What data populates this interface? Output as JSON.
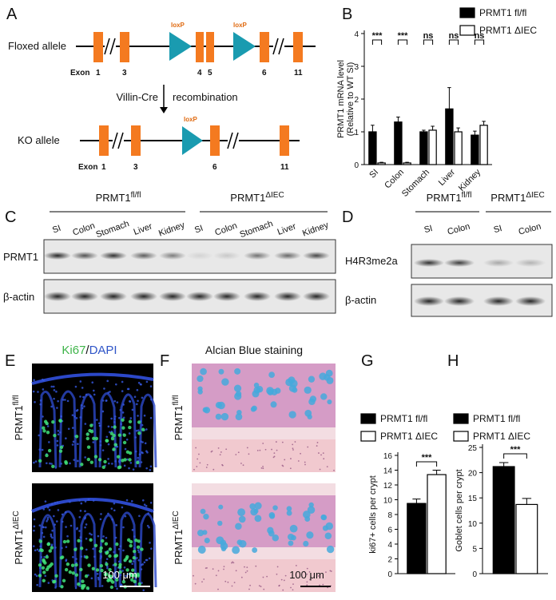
{
  "panel_a": {
    "label": "A",
    "floxed": {
      "title": "Floxed allele",
      "exon_word": "Exon",
      "exons": [
        "1",
        "3",
        "4",
        "5",
        "6",
        "11"
      ],
      "loxp": [
        "loxP",
        "loxP"
      ]
    },
    "arrow": {
      "left": "Villin-Cre",
      "right": "recombination"
    },
    "ko": {
      "title": "KO allele",
      "exon_word": "Exon",
      "exons": [
        "1",
        "3",
        "6",
        "11"
      ],
      "loxp": [
        "loxP"
      ]
    }
  },
  "panel_c": {
    "label": "C",
    "groups": [
      {
        "base": "PRMT1",
        "sup": "fl/fl"
      },
      {
        "base": "PRMT1",
        "sup": "ΔIEC"
      }
    ],
    "lanes": [
      "SI",
      "Colon",
      "Stomach",
      "Liver",
      "Kidney",
      "SI",
      "Colon",
      "Stomach",
      "Liver",
      "Kidney"
    ],
    "rows": [
      "PRMT1",
      "β-actin"
    ]
  },
  "panel_d": {
    "label": "D",
    "groups": [
      {
        "base": "PRMT1",
        "sup": "fl/fl"
      },
      {
        "base": "PRMT1",
        "sup": "ΔIEC"
      }
    ],
    "lanes": [
      "SI",
      "Colon",
      "SI",
      "Colon"
    ],
    "rows": [
      "H4R3me2a",
      "β-actin"
    ]
  },
  "panel_e": {
    "label": "E",
    "title": [
      "Ki67",
      "/",
      "DAPI"
    ],
    "rows": [
      {
        "base": "PRMT1",
        "sup": "fl/fl"
      },
      {
        "base": "PRMT1",
        "sup": "ΔIEC"
      }
    ],
    "scale": "100 μm"
  },
  "panel_f": {
    "label": "F",
    "title": "Alcian Blue staining",
    "rows": [
      {
        "base": "PRMT1",
        "sup": "fl/fl"
      },
      {
        "base": "PRMT1",
        "sup": "ΔIEC"
      }
    ],
    "scale": "100 μm"
  },
  "chart_data": [
    {
      "type": "bar",
      "label": "B",
      "ylabel": [
        "PRMT1 mRNA level",
        "(Relative to WT SI)"
      ],
      "categories": [
        "SI",
        "Colon",
        "Stomach",
        "Liver",
        "Kidney"
      ],
      "series": [
        {
          "name": "PRMT1 fl/fl",
          "color": "#000000",
          "values": [
            1.0,
            1.3,
            1.0,
            1.7,
            0.9
          ],
          "errors": [
            0.2,
            0.15,
            0.05,
            0.65,
            0.12
          ]
        },
        {
          "name": "PRMT1 ΔIEC",
          "color": "#ffffff",
          "values": [
            0.05,
            0.05,
            1.05,
            1.0,
            1.2
          ],
          "errors": [
            0.02,
            0.02,
            0.12,
            0.12,
            0.12
          ]
        }
      ],
      "significance": [
        "***",
        "***",
        "ns",
        "ns",
        "ns"
      ],
      "ylim": [
        0,
        4
      ],
      "yticks": [
        0,
        1,
        2,
        3,
        4
      ]
    },
    {
      "type": "bar",
      "label": "G",
      "ylabel": [
        "ki67+ cells per crypt"
      ],
      "categories": [
        null
      ],
      "series": [
        {
          "name": "PRMT1 fl/fl",
          "color": "#000000",
          "values": [
            9.5
          ],
          "errors": [
            0.6
          ]
        },
        {
          "name": "PRMT1 ΔIEC",
          "color": "#ffffff",
          "values": [
            13.4
          ],
          "errors": [
            0.6
          ]
        }
      ],
      "significance": [
        "***"
      ],
      "ylim": [
        0,
        16
      ],
      "yticks": [
        0,
        2,
        4,
        6,
        8,
        10,
        12,
        14,
        16
      ]
    },
    {
      "type": "bar",
      "label": "H",
      "ylabel": [
        "Goblet cells per crypt"
      ],
      "categories": [
        null
      ],
      "series": [
        {
          "name": "PRMT1 fl/fl",
          "color": "#000000",
          "values": [
            21.2
          ],
          "errors": [
            0.8
          ]
        },
        {
          "name": "PRMT1 ΔIEC",
          "color": "#ffffff",
          "values": [
            13.7
          ],
          "errors": [
            1.2
          ]
        }
      ],
      "significance": [
        "***"
      ],
      "ylim": [
        0,
        25
      ],
      "yticks": [
        0,
        5,
        10,
        15,
        20,
        25
      ]
    }
  ]
}
